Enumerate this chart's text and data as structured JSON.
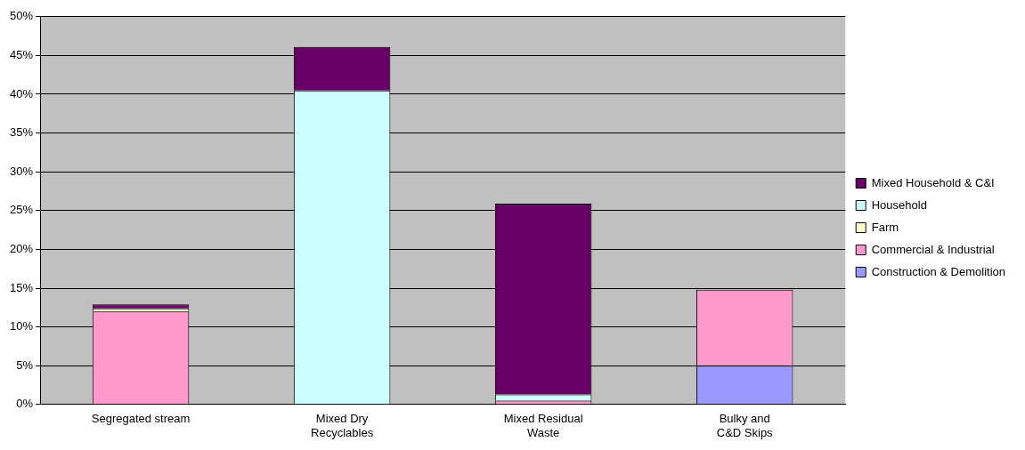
{
  "chart_data": {
    "type": "bar",
    "stacked": true,
    "categories": [
      "Segregated stream",
      "Mixed Dry Recyclables",
      "Mixed Residual Waste",
      "Bulky and C&D Skips"
    ],
    "series": [
      {
        "name": "Construction & Demolition",
        "color": "#9999ff",
        "values": [
          null,
          null,
          0,
          5.0
        ]
      },
      {
        "name": "Commercial & Industrial",
        "color": "#ff99cc",
        "values": [
          12.0,
          0,
          0.5,
          9.8
        ]
      },
      {
        "name": "Farm",
        "color": "#ffffcc",
        "values": [
          0.4,
          0,
          0,
          0
        ]
      },
      {
        "name": "Household",
        "color": "#ccffff",
        "values": [
          null,
          40.5,
          0.8,
          0
        ]
      },
      {
        "name": "Mixed Household & C&I",
        "color": "#660066",
        "values": [
          0.5,
          5.6,
          24.6,
          0
        ]
      }
    ],
    "ylim": [
      0,
      50
    ],
    "yticks": [
      {
        "value": 0,
        "label": "0%"
      },
      {
        "value": 5,
        "label": "5%"
      },
      {
        "value": 10,
        "label": "10%"
      },
      {
        "value": 15,
        "label": "15%"
      },
      {
        "value": 20,
        "label": "20%"
      },
      {
        "value": 25,
        "label": "25%"
      },
      {
        "value": 30,
        "label": "30%"
      },
      {
        "value": 35,
        "label": "35%"
      },
      {
        "value": 40,
        "label": "40%"
      },
      {
        "value": 45,
        "label": "45%"
      },
      {
        "value": 50,
        "label": "50%"
      }
    ],
    "grid": "y",
    "legend": "right"
  }
}
